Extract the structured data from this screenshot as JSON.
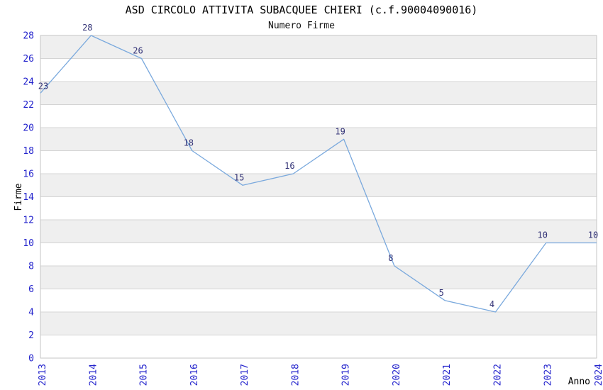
{
  "chart_data": {
    "type": "line",
    "title": "ASD CIRCOLO ATTIVITA SUBACQUEE CHIERI (c.f.90004090016)",
    "subtitle": "Numero Firme",
    "xlabel": "Anno",
    "ylabel": "Firme",
    "categories": [
      2013,
      2014,
      2015,
      2016,
      2017,
      2018,
      2019,
      2020,
      2021,
      2022,
      2023,
      2024
    ],
    "values": [
      23,
      28,
      26,
      18,
      15,
      16,
      19,
      8,
      5,
      4,
      10,
      10
    ],
    "ylim": [
      0,
      28
    ],
    "ytick_step": 2,
    "grid": true,
    "banded_background": true,
    "legend_position": "none",
    "point_labels_visible": true,
    "colors": {
      "line": "#7aa9dd",
      "tick_label": "#2323cc",
      "point_label": "#333377",
      "band": "#efefef",
      "grid": "#d4d4d4",
      "border": "#c6c6c6",
      "background": "#ffffff",
      "text": "#000000"
    }
  }
}
